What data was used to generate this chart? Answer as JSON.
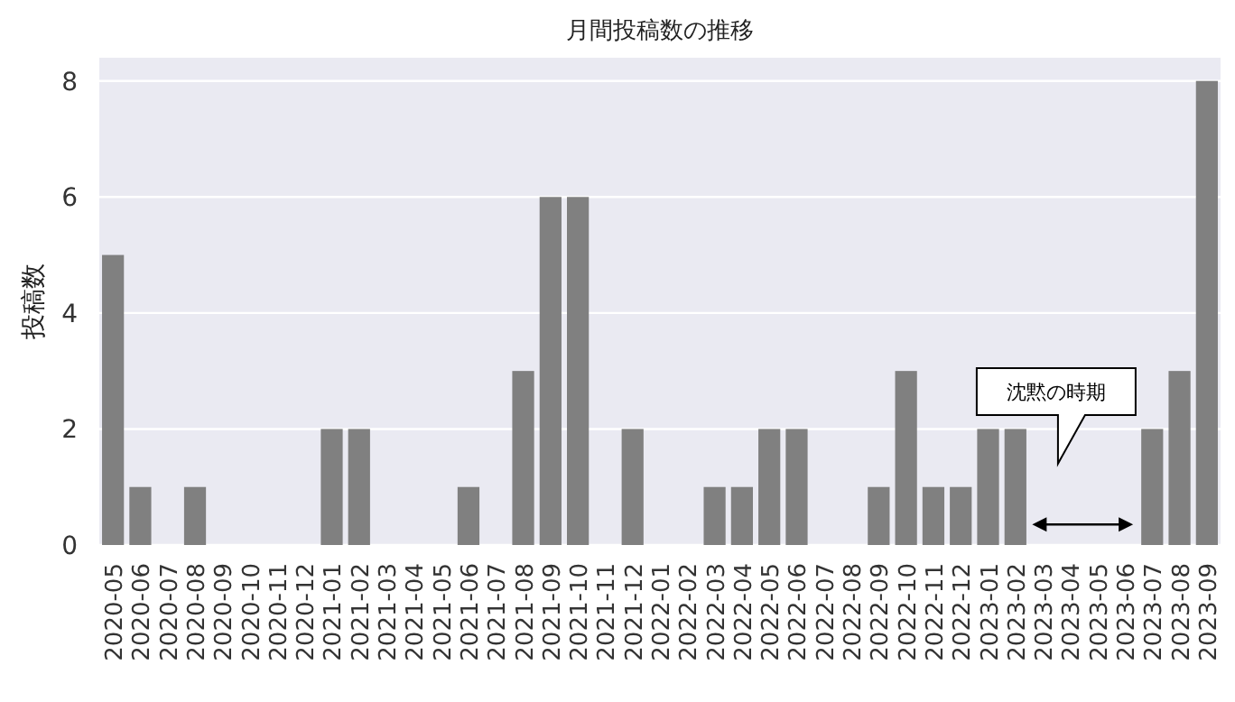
{
  "chart_data": {
    "type": "bar",
    "title": "月間投稿数の推移",
    "ylabel": "投稿数",
    "categories": [
      "2020-05",
      "2020-06",
      "2020-07",
      "2020-08",
      "2020-09",
      "2020-10",
      "2020-11",
      "2020-12",
      "2021-01",
      "2021-02",
      "2021-03",
      "2021-04",
      "2021-05",
      "2021-06",
      "2021-07",
      "2021-08",
      "2021-09",
      "2021-10",
      "2021-11",
      "2021-12",
      "2022-01",
      "2022-02",
      "2022-03",
      "2022-04",
      "2022-05",
      "2022-06",
      "2022-07",
      "2022-08",
      "2022-09",
      "2022-10",
      "2022-11",
      "2022-12",
      "2023-01",
      "2023-02",
      "2023-03",
      "2023-04",
      "2023-05",
      "2023-06",
      "2023-07",
      "2023-08",
      "2023-09"
    ],
    "values": [
      5,
      1,
      0,
      1,
      0,
      0,
      0,
      0,
      2,
      2,
      0,
      0,
      0,
      1,
      0,
      3,
      6,
      6,
      0,
      2,
      0,
      0,
      1,
      1,
      2,
      2,
      0,
      0,
      1,
      3,
      1,
      1,
      2,
      2,
      0,
      0,
      0,
      0,
      2,
      3,
      8
    ],
    "color": "#808080",
    "ylim": [
      0,
      8.4
    ],
    "yticks": [
      0,
      2,
      4,
      6,
      8
    ],
    "grid": "y",
    "annotations": [
      "沈黙の時期"
    ]
  }
}
